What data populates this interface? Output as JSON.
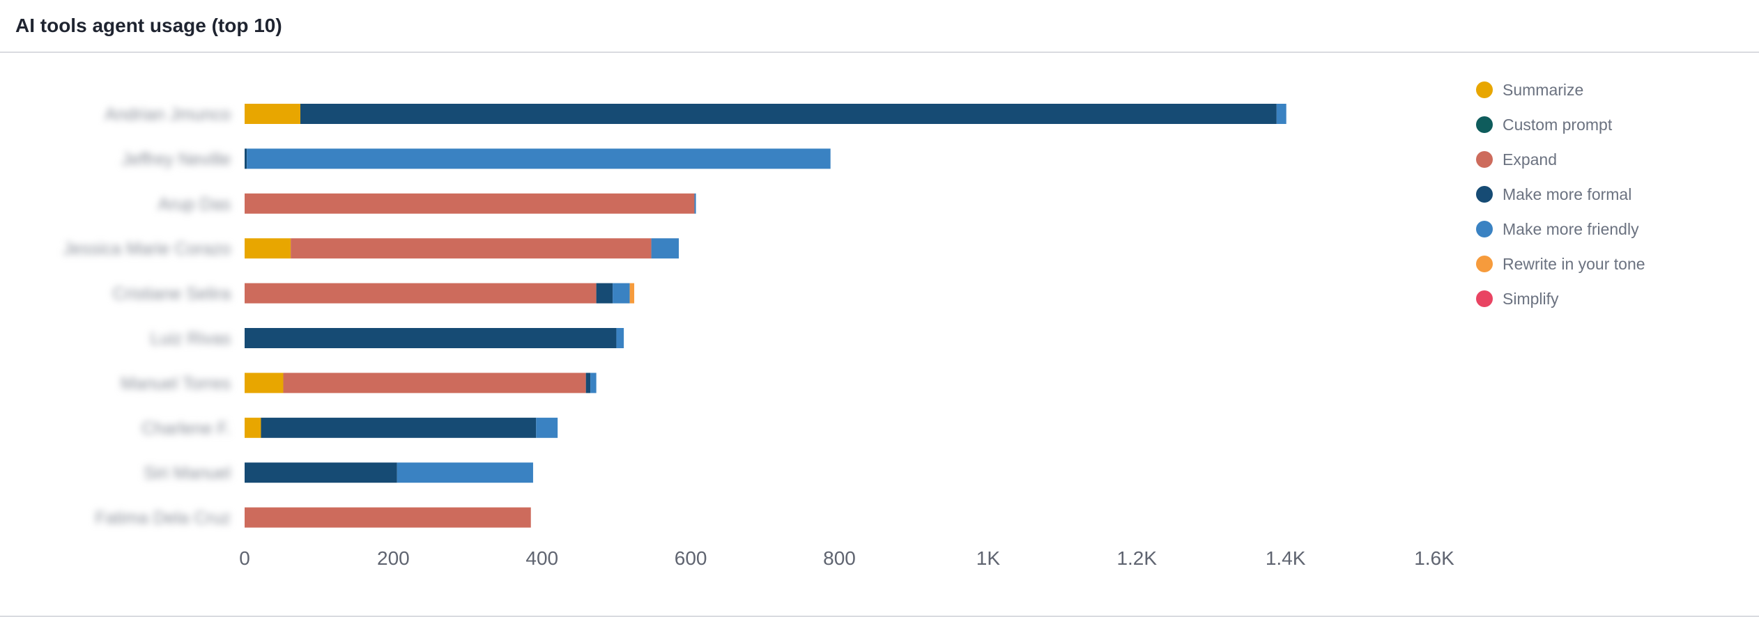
{
  "panel": {
    "title": "AI tools agent usage (top 10)"
  },
  "chart_data": {
    "type": "bar",
    "orientation": "horizontal",
    "stacked": true,
    "title": "AI tools agent usage (top 10)",
    "xlim": [
      0,
      1600
    ],
    "xticks": [
      {
        "value": 0,
        "label": "0"
      },
      {
        "value": 200,
        "label": "200"
      },
      {
        "value": 400,
        "label": "400"
      },
      {
        "value": 600,
        "label": "600"
      },
      {
        "value": 800,
        "label": "800"
      },
      {
        "value": 1000,
        "label": "1K"
      },
      {
        "value": 1200,
        "label": "1.2K"
      },
      {
        "value": 1400,
        "label": "1.4K"
      },
      {
        "value": 1600,
        "label": "1.6K"
      }
    ],
    "categories": [
      "Andrian Jmunco",
      "Jeffrey Neville",
      "Arup Das",
      "Jessica Marie Corazo",
      "Cristiane Selira",
      "Luiz Rivas",
      "Manuel Torres",
      "Charlene F.",
      "Siri Manuel",
      "Fatima Dela Cruz"
    ],
    "legend_position": "right",
    "series": [
      {
        "name": "Summarize",
        "color": "#e8a600",
        "values": [
          75,
          0,
          0,
          62,
          0,
          0,
          52,
          22,
          0,
          0
        ]
      },
      {
        "name": "Custom prompt",
        "color": "#0e5c5c",
        "values": [
          0,
          0,
          0,
          0,
          0,
          0,
          0,
          0,
          0,
          0
        ]
      },
      {
        "name": "Expand",
        "color": "#cd6b5c",
        "values": [
          0,
          0,
          605,
          485,
          473,
          0,
          407,
          0,
          0,
          385
        ]
      },
      {
        "name": "Make more formal",
        "color": "#164b74",
        "values": [
          1313,
          3,
          0,
          0,
          22,
          500,
          6,
          370,
          205,
          0
        ]
      },
      {
        "name": "Make more friendly",
        "color": "#3a82c2",
        "values": [
          13,
          785,
          2,
          37,
          23,
          10,
          8,
          29,
          183,
          0
        ]
      },
      {
        "name": "Rewrite in your tone",
        "color": "#f69b3c",
        "values": [
          0,
          0,
          0,
          0,
          6,
          0,
          0,
          0,
          0,
          0
        ]
      },
      {
        "name": "Simplify",
        "color": "#e94462",
        "values": [
          0,
          0,
          0,
          0,
          0,
          0,
          0,
          0,
          0,
          0
        ]
      }
    ]
  }
}
